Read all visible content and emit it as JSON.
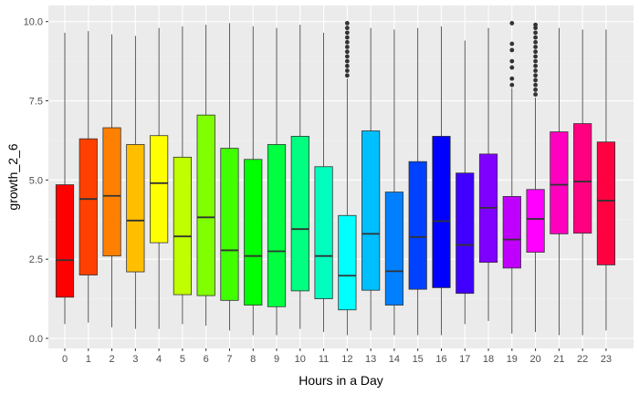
{
  "chart_data": {
    "type": "boxplot",
    "title": "",
    "xlabel": "Hours in a Day",
    "ylabel": "growth_2_6",
    "ylim": [
      -0.3,
      10.3
    ],
    "yticks": [
      0.0,
      2.5,
      5.0,
      7.5,
      10.0
    ],
    "ytick_labels": [
      "0.0",
      "2.5",
      "5.0",
      "7.5",
      "10.0"
    ],
    "grid": true,
    "legend": "none",
    "categories": [
      "0",
      "1",
      "2",
      "3",
      "4",
      "5",
      "6",
      "7",
      "8",
      "9",
      "10",
      "11",
      "12",
      "13",
      "14",
      "15",
      "16",
      "17",
      "18",
      "19",
      "20",
      "21",
      "22",
      "23"
    ],
    "boxes": [
      {
        "x": "0",
        "min": 0.45,
        "q1": 1.3,
        "median": 2.47,
        "q3": 4.85,
        "max": 9.65,
        "color": "#FF0000"
      },
      {
        "x": "1",
        "min": 0.5,
        "q1": 2.0,
        "median": 4.4,
        "q3": 6.3,
        "max": 9.7,
        "color": "#FF4000"
      },
      {
        "x": "2",
        "min": 0.35,
        "q1": 2.6,
        "median": 4.5,
        "q3": 6.65,
        "max": 9.6,
        "color": "#FF8000"
      },
      {
        "x": "3",
        "min": 0.3,
        "q1": 2.1,
        "median": 3.72,
        "q3": 6.12,
        "max": 9.55,
        "color": "#FFBF00"
      },
      {
        "x": "4",
        "min": 0.3,
        "q1": 3.02,
        "median": 4.9,
        "q3": 6.4,
        "max": 9.8,
        "color": "#FFFF00"
      },
      {
        "x": "5",
        "min": 0.45,
        "q1": 1.38,
        "median": 3.22,
        "q3": 5.72,
        "max": 9.85,
        "color": "#BFFF00"
      },
      {
        "x": "6",
        "min": 0.4,
        "q1": 1.35,
        "median": 3.82,
        "q3": 7.05,
        "max": 9.9,
        "color": "#80FF00"
      },
      {
        "x": "7",
        "min": 0.25,
        "q1": 1.2,
        "median": 2.78,
        "q3": 6.0,
        "max": 9.95,
        "color": "#40FF00"
      },
      {
        "x": "8",
        "min": 0.1,
        "q1": 1.05,
        "median": 2.6,
        "q3": 5.65,
        "max": 9.85,
        "color": "#00FF00"
      },
      {
        "x": "9",
        "min": 0.1,
        "q1": 1.0,
        "median": 2.75,
        "q3": 6.12,
        "max": 9.8,
        "color": "#00FF40"
      },
      {
        "x": "10",
        "min": 0.3,
        "q1": 1.5,
        "median": 3.45,
        "q3": 6.38,
        "max": 9.9,
        "color": "#00FF80"
      },
      {
        "x": "11",
        "min": 0.2,
        "q1": 1.25,
        "median": 2.6,
        "q3": 5.42,
        "max": 9.65,
        "color": "#00FFBF"
      },
      {
        "x": "12",
        "min": 0.1,
        "q1": 0.9,
        "median": 1.98,
        "q3": 3.88,
        "max": 8.2,
        "color": "#00FFFF",
        "outliers": [
          8.3,
          8.45,
          8.6,
          8.75,
          8.9,
          9.05,
          9.2,
          9.35,
          9.5,
          9.65,
          9.8,
          9.95
        ]
      },
      {
        "x": "13",
        "min": 0.25,
        "q1": 1.52,
        "median": 3.3,
        "q3": 6.55,
        "max": 9.8,
        "color": "#00BFFF"
      },
      {
        "x": "14",
        "min": 0.1,
        "q1": 1.05,
        "median": 2.12,
        "q3": 4.62,
        "max": 9.75,
        "color": "#0080FF"
      },
      {
        "x": "15",
        "min": 0.1,
        "q1": 1.55,
        "median": 3.2,
        "q3": 5.58,
        "max": 9.8,
        "color": "#0040FF"
      },
      {
        "x": "16",
        "min": 0.1,
        "q1": 1.6,
        "median": 3.7,
        "q3": 6.38,
        "max": 9.85,
        "color": "#0000FF"
      },
      {
        "x": "17",
        "min": 0.45,
        "q1": 1.42,
        "median": 2.95,
        "q3": 5.22,
        "max": 9.4,
        "color": "#4000FF"
      },
      {
        "x": "18",
        "min": 0.55,
        "q1": 2.4,
        "median": 4.12,
        "q3": 5.82,
        "max": 9.8,
        "color": "#8000FF"
      },
      {
        "x": "19",
        "min": 0.15,
        "q1": 2.22,
        "median": 3.12,
        "q3": 4.48,
        "max": 7.9,
        "color": "#BF00FF",
        "outliers": [
          8.0,
          8.2,
          8.55,
          8.75,
          9.1,
          9.3,
          9.95
        ]
      },
      {
        "x": "20",
        "min": 0.2,
        "q1": 2.72,
        "median": 3.77,
        "q3": 4.7,
        "max": 7.6,
        "color": "#FF00FF",
        "outliers": [
          7.7,
          7.85,
          8.0,
          8.15,
          8.3,
          8.45,
          8.6,
          8.75,
          8.9,
          9.05,
          9.2,
          9.35,
          9.5,
          9.65,
          9.8,
          9.9
        ]
      },
      {
        "x": "21",
        "min": 0.1,
        "q1": 3.3,
        "median": 4.85,
        "q3": 6.52,
        "max": 9.8,
        "color": "#FF00BF"
      },
      {
        "x": "22",
        "min": 0.1,
        "q1": 3.32,
        "median": 4.95,
        "q3": 6.78,
        "max": 9.75,
        "color": "#FF0080"
      },
      {
        "x": "23",
        "min": 0.25,
        "q1": 2.32,
        "median": 4.35,
        "q3": 6.2,
        "max": 9.75,
        "color": "#FF0040"
      }
    ]
  }
}
